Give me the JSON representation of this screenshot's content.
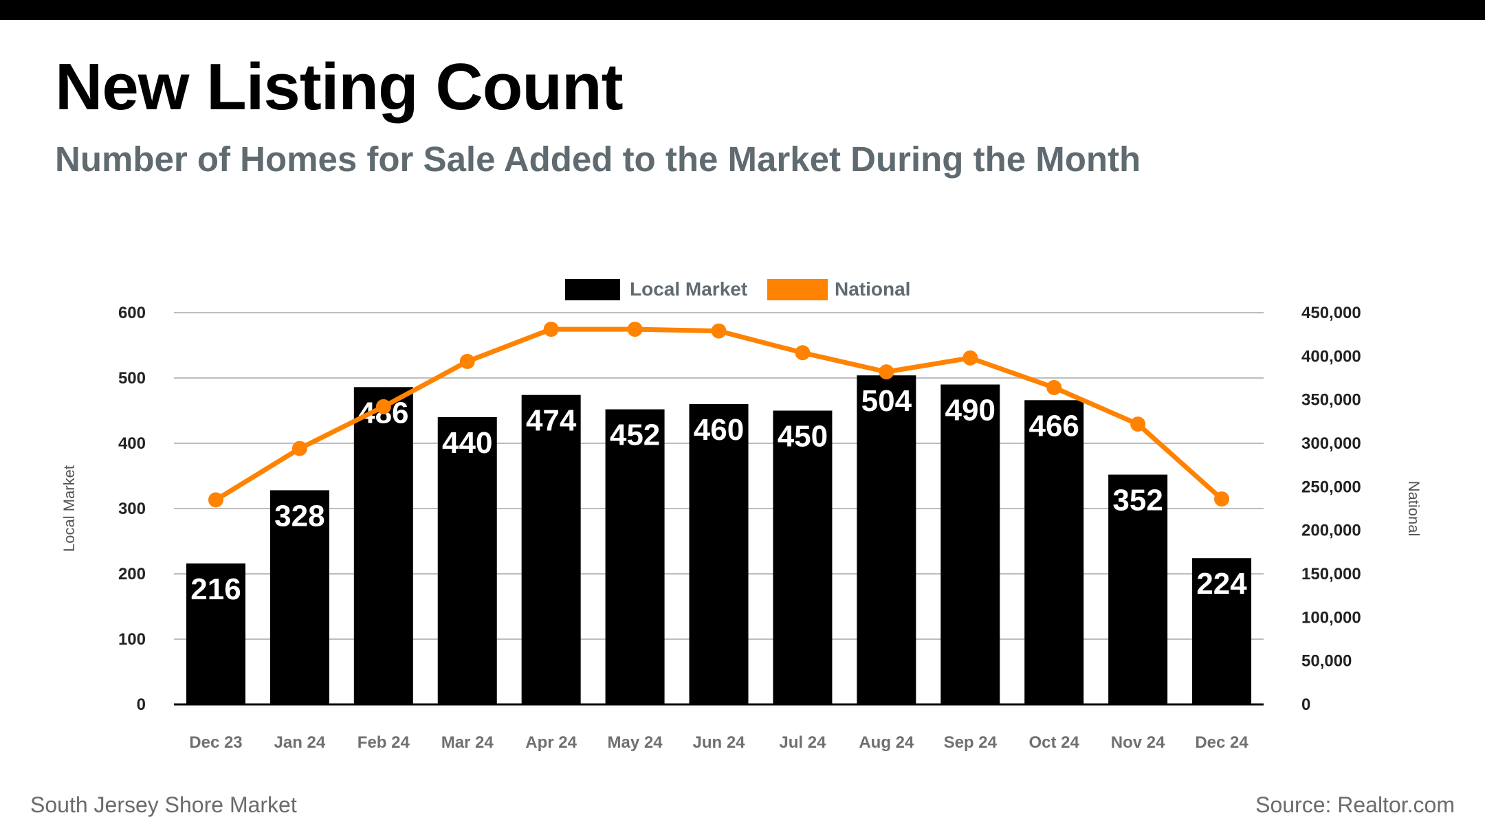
{
  "header": {
    "title": "New Listing Count",
    "subtitle": "Number of Homes for Sale Added to the Market During the Month"
  },
  "footer": {
    "left": "South Jersey Shore Market",
    "right": "Source: Realtor.com"
  },
  "colors": {
    "bar": "#000000",
    "line": "#ff8200",
    "grid": "#bdbdbd",
    "subtitle": "#5f6b70"
  },
  "chart_data": {
    "type": "bar",
    "categories": [
      "Dec 23",
      "Jan 24",
      "Feb 24",
      "Mar 24",
      "Apr 24",
      "May 24",
      "Jun 24",
      "Jul 24",
      "Aug 24",
      "Sep 24",
      "Oct 24",
      "Nov 24",
      "Dec 24"
    ],
    "series": [
      {
        "name": "Local Market",
        "type": "bar",
        "axis": "left",
        "values": [
          216,
          328,
          486,
          440,
          474,
          452,
          460,
          450,
          504,
          490,
          466,
          352,
          224
        ]
      },
      {
        "name": "National",
        "type": "line",
        "axis": "right",
        "values": [
          235000,
          294000,
          342000,
          394000,
          431000,
          431000,
          429000,
          404000,
          382000,
          398000,
          364000,
          322000,
          236000
        ]
      }
    ],
    "ylabel": "Local Market",
    "y2label": "National",
    "ylim": [
      0,
      600
    ],
    "y2lim": [
      0,
      450000
    ],
    "yticks": [
      "0",
      "100",
      "200",
      "300",
      "400",
      "500",
      "600"
    ],
    "y2ticks": [
      "0",
      "50,000",
      "100,000",
      "150,000",
      "200,000",
      "250,000",
      "300,000",
      "350,000",
      "400,000",
      "450,000"
    ],
    "legend": [
      "Local Market",
      "National"
    ],
    "legend_position": "top-center",
    "grid": true
  }
}
